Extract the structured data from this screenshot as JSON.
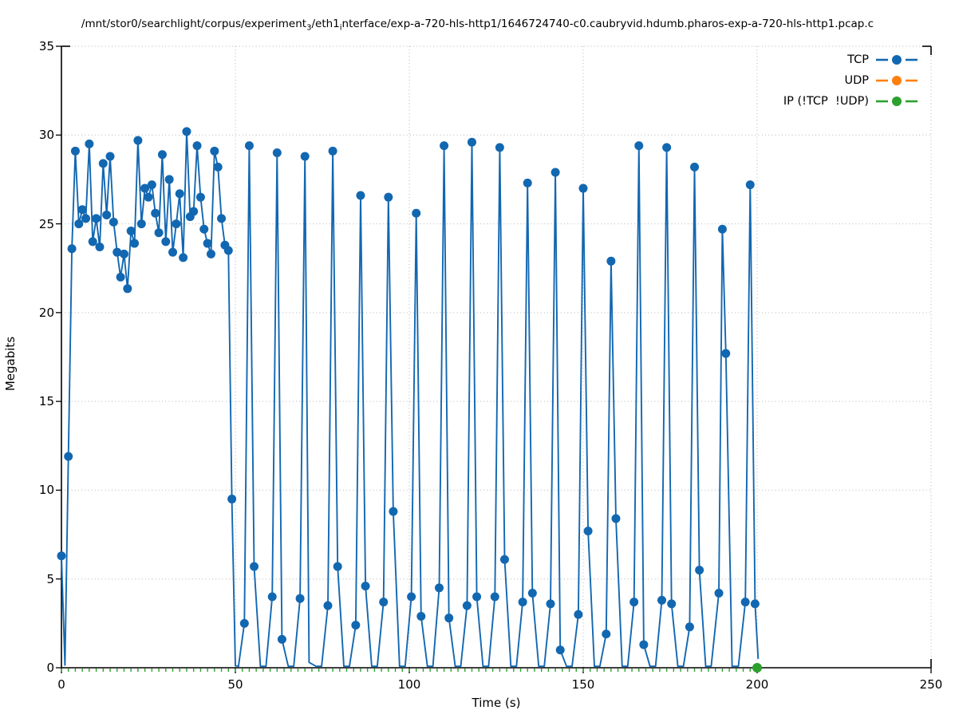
{
  "title": {
    "p1": "/mnt/stor0/searchlight/corpus/experiment",
    "s1": "3",
    "p2": "/eth1",
    "s2": "i",
    "p3": "nterface/exp-a-720-hls-http1/1646724740-c0.caubryvid.hdumb.pharos-exp-a-720-hls-http1.pcap.c"
  },
  "axes": {
    "xlabel": "Time (s)",
    "ylabel": "Megabits",
    "xtick_labels": [
      "0",
      "50",
      "100",
      "150",
      "200",
      "250"
    ],
    "ytick_labels": [
      "0",
      "5",
      "10",
      "15",
      "20",
      "25",
      "30",
      "35"
    ]
  },
  "legend": [
    {
      "label": "TCP",
      "color": "#1267b1"
    },
    {
      "label": "UDP",
      "color": "#ff7f0e"
    },
    {
      "label": "IP (!TCP  !UDP)",
      "color": "#2ca02c"
    }
  ],
  "chart_data": {
    "type": "line",
    "title": "/mnt/stor0/searchlight/corpus/experiment_3/eth1_interface/exp-a-720-hls-http1/1646724740-c0.caubryvid.hdumb.pharos-exp-a-720-hls-http1.pcap.c",
    "xlabel": "Time (s)",
    "ylabel": "Megabits",
    "xlim": [
      0,
      250
    ],
    "ylim": [
      0,
      35
    ],
    "xticks": [
      0,
      50,
      100,
      150,
      200,
      250
    ],
    "yticks": [
      0,
      5,
      10,
      15,
      20,
      25,
      30,
      35
    ],
    "grid": true,
    "legend_position": "top-right",
    "series": [
      {
        "name": "TCP",
        "color": "#1267b1",
        "style": "solid-line-with-dot-markers",
        "line": [
          [
            0,
            6.3
          ],
          [
            1,
            0.15
          ],
          [
            2,
            11.9
          ],
          [
            3,
            23.6
          ],
          [
            4,
            29.1
          ],
          [
            5,
            25.0
          ],
          [
            6,
            25.8
          ],
          [
            7,
            25.3
          ],
          [
            8,
            29.5
          ],
          [
            9,
            24.0
          ],
          [
            10,
            25.3
          ],
          [
            11,
            23.7
          ],
          [
            12,
            28.4
          ],
          [
            13,
            25.5
          ],
          [
            14,
            28.8
          ],
          [
            15,
            25.1
          ],
          [
            16,
            23.4
          ],
          [
            17,
            22.0
          ],
          [
            18,
            23.3
          ],
          [
            19,
            21.35
          ],
          [
            20,
            24.6
          ],
          [
            21,
            23.9
          ],
          [
            22,
            29.7
          ],
          [
            23,
            25.0
          ],
          [
            24,
            27.0
          ],
          [
            25,
            26.5
          ],
          [
            26,
            27.2
          ],
          [
            27,
            25.6
          ],
          [
            28,
            24.5
          ],
          [
            29,
            28.9
          ],
          [
            30,
            24.0
          ],
          [
            31,
            27.5
          ],
          [
            32,
            23.4
          ],
          [
            33,
            25.0
          ],
          [
            34,
            26.7
          ],
          [
            35,
            23.1
          ],
          [
            36,
            30.2
          ],
          [
            37,
            25.4
          ],
          [
            38,
            25.7
          ],
          [
            39,
            29.4
          ],
          [
            40,
            26.5
          ],
          [
            41,
            24.7
          ],
          [
            42,
            23.9
          ],
          [
            43,
            23.3
          ],
          [
            44,
            29.1
          ],
          [
            45,
            28.2
          ],
          [
            46,
            25.3
          ],
          [
            47,
            23.8
          ],
          [
            48,
            23.5
          ],
          [
            49,
            9.5
          ],
          [
            50,
            0.12
          ],
          [
            50.9,
            0.08
          ],
          [
            52.6,
            2.5
          ],
          [
            54,
            29.4
          ],
          [
            55.4,
            5.7
          ],
          [
            57.2,
            0.08
          ],
          [
            58.8,
            0.08
          ],
          [
            60.6,
            4.0
          ],
          [
            62,
            29.0
          ],
          [
            63.4,
            1.6
          ],
          [
            65.2,
            0.08
          ],
          [
            66.8,
            0.08
          ],
          [
            68.6,
            3.9
          ],
          [
            70,
            28.8
          ],
          [
            71.2,
            0.3
          ],
          [
            73.2,
            0.08
          ],
          [
            74.8,
            0.08
          ],
          [
            76.6,
            3.5
          ],
          [
            78,
            29.1
          ],
          [
            79.4,
            5.7
          ],
          [
            81.2,
            0.08
          ],
          [
            82.8,
            0.08
          ],
          [
            84.6,
            2.4
          ],
          [
            86,
            26.6
          ],
          [
            87.4,
            4.6
          ],
          [
            89.2,
            0.08
          ],
          [
            90.8,
            0.08
          ],
          [
            92.6,
            3.7
          ],
          [
            94,
            26.5
          ],
          [
            95.4,
            8.8
          ],
          [
            97.2,
            0.08
          ],
          [
            98.8,
            0.08
          ],
          [
            100.6,
            4.0
          ],
          [
            102,
            25.6
          ],
          [
            103.4,
            2.9
          ],
          [
            105.2,
            0.08
          ],
          [
            106.8,
            0.08
          ],
          [
            108.6,
            4.5
          ],
          [
            110,
            29.4
          ],
          [
            111.4,
            2.8
          ],
          [
            113.2,
            0.08
          ],
          [
            114.8,
            0.08
          ],
          [
            116.6,
            3.5
          ],
          [
            118,
            29.6
          ],
          [
            119.4,
            4.0
          ],
          [
            121.2,
            0.08
          ],
          [
            122.8,
            0.08
          ],
          [
            124.6,
            4.0
          ],
          [
            126,
            29.3
          ],
          [
            127.4,
            6.1
          ],
          [
            129.2,
            0.08
          ],
          [
            130.8,
            0.08
          ],
          [
            132.6,
            3.7
          ],
          [
            134,
            27.3
          ],
          [
            135.4,
            4.2
          ],
          [
            137.2,
            0.08
          ],
          [
            138.8,
            0.08
          ],
          [
            140.6,
            3.6
          ],
          [
            142,
            27.9
          ],
          [
            143.4,
            1.0
          ],
          [
            145.2,
            0.08
          ],
          [
            146.8,
            0.08
          ],
          [
            148.6,
            3.0
          ],
          [
            150,
            27.0
          ],
          [
            151.4,
            7.7
          ],
          [
            153.2,
            0.08
          ],
          [
            154.8,
            0.08
          ],
          [
            156.6,
            1.9
          ],
          [
            158,
            22.9
          ],
          [
            159.4,
            8.4
          ],
          [
            161.2,
            0.08
          ],
          [
            162.8,
            0.08
          ],
          [
            164.6,
            3.7
          ],
          [
            166,
            29.4
          ],
          [
            167.4,
            1.3
          ],
          [
            169.2,
            0.08
          ],
          [
            170.8,
            0.08
          ],
          [
            172.6,
            3.8
          ],
          [
            174,
            29.3
          ],
          [
            175.4,
            3.6
          ],
          [
            177.2,
            0.08
          ],
          [
            178.8,
            0.08
          ],
          [
            180.6,
            2.3
          ],
          [
            182,
            28.2
          ],
          [
            183.4,
            5.5
          ],
          [
            185.2,
            0.08
          ],
          [
            186.8,
            0.08
          ],
          [
            189,
            4.2
          ],
          [
            190,
            24.7
          ],
          [
            191,
            17.7
          ],
          [
            192.8,
            0.08
          ],
          [
            194.6,
            0.08
          ],
          [
            196.6,
            3.7
          ],
          [
            198,
            27.2
          ],
          [
            199.4,
            3.6
          ],
          [
            200.3,
            0.5
          ]
        ],
        "markers": [
          [
            0,
            6.3
          ],
          [
            2,
            11.9
          ],
          [
            3,
            23.6
          ],
          [
            4,
            29.1
          ],
          [
            5,
            25.0
          ],
          [
            6,
            25.8
          ],
          [
            7,
            25.3
          ],
          [
            8,
            29.5
          ],
          [
            9,
            24.0
          ],
          [
            10,
            25.3
          ],
          [
            11,
            23.7
          ],
          [
            12,
            28.4
          ],
          [
            13,
            25.5
          ],
          [
            14,
            28.8
          ],
          [
            15,
            25.1
          ],
          [
            16,
            23.4
          ],
          [
            17,
            22.0
          ],
          [
            18,
            23.3
          ],
          [
            19,
            21.35
          ],
          [
            20,
            24.6
          ],
          [
            21,
            23.9
          ],
          [
            22,
            29.7
          ],
          [
            23,
            25.0
          ],
          [
            24,
            27.0
          ],
          [
            25,
            26.5
          ],
          [
            26,
            27.2
          ],
          [
            27,
            25.6
          ],
          [
            28,
            24.5
          ],
          [
            29,
            28.9
          ],
          [
            30,
            24.0
          ],
          [
            31,
            27.5
          ],
          [
            32,
            23.4
          ],
          [
            33,
            25.0
          ],
          [
            34,
            26.7
          ],
          [
            35,
            23.1
          ],
          [
            36,
            30.2
          ],
          [
            37,
            25.4
          ],
          [
            38,
            25.7
          ],
          [
            39,
            29.4
          ],
          [
            40,
            26.5
          ],
          [
            41,
            24.7
          ],
          [
            42,
            23.9
          ],
          [
            43,
            23.3
          ],
          [
            44,
            29.1
          ],
          [
            45,
            28.2
          ],
          [
            46,
            25.3
          ],
          [
            47,
            23.8
          ],
          [
            48,
            23.5
          ],
          [
            49,
            9.5
          ],
          [
            52.6,
            2.5
          ],
          [
            54,
            29.4
          ],
          [
            55.4,
            5.7
          ],
          [
            60.6,
            4.0
          ],
          [
            62,
            29.0
          ],
          [
            63.4,
            1.6
          ],
          [
            68.6,
            3.9
          ],
          [
            70,
            28.8
          ],
          [
            76.6,
            3.5
          ],
          [
            78,
            29.1
          ],
          [
            79.4,
            5.7
          ],
          [
            84.6,
            2.4
          ],
          [
            86,
            26.6
          ],
          [
            87.4,
            4.6
          ],
          [
            92.6,
            3.7
          ],
          [
            94,
            26.5
          ],
          [
            95.4,
            8.8
          ],
          [
            100.6,
            4.0
          ],
          [
            102,
            25.6
          ],
          [
            103.4,
            2.9
          ],
          [
            108.6,
            4.5
          ],
          [
            110,
            29.4
          ],
          [
            111.4,
            2.8
          ],
          [
            116.6,
            3.5
          ],
          [
            118,
            29.6
          ],
          [
            119.4,
            4.0
          ],
          [
            124.6,
            4.0
          ],
          [
            126,
            29.3
          ],
          [
            127.4,
            6.1
          ],
          [
            132.6,
            3.7
          ],
          [
            134,
            27.3
          ],
          [
            135.4,
            4.2
          ],
          [
            140.6,
            3.6
          ],
          [
            142,
            27.9
          ],
          [
            143.4,
            1.0
          ],
          [
            148.6,
            3.0
          ],
          [
            150,
            27.0
          ],
          [
            151.4,
            7.7
          ],
          [
            156.6,
            1.9
          ],
          [
            158,
            22.9
          ],
          [
            159.4,
            8.4
          ],
          [
            164.6,
            3.7
          ],
          [
            166,
            29.4
          ],
          [
            167.4,
            1.3
          ],
          [
            172.6,
            3.8
          ],
          [
            174,
            29.3
          ],
          [
            175.4,
            3.6
          ],
          [
            180.6,
            2.3
          ],
          [
            182,
            28.2
          ],
          [
            183.4,
            5.5
          ],
          [
            189,
            4.2
          ],
          [
            190,
            24.7
          ],
          [
            191,
            17.7
          ],
          [
            196.6,
            3.7
          ],
          [
            198,
            27.2
          ],
          [
            199.4,
            3.6
          ]
        ]
      },
      {
        "name": "UDP",
        "color": "#ff7f0e",
        "style": "dashed-line-with-dot-markers",
        "line": [],
        "markers": []
      },
      {
        "name": "IP (!TCP  !UDP)",
        "color": "#2ca02c",
        "style": "dashed-line-along-zero",
        "line": [
          [
            0,
            0
          ],
          [
            200,
            0
          ]
        ],
        "markers": [
          [
            200,
            0
          ]
        ]
      }
    ]
  }
}
